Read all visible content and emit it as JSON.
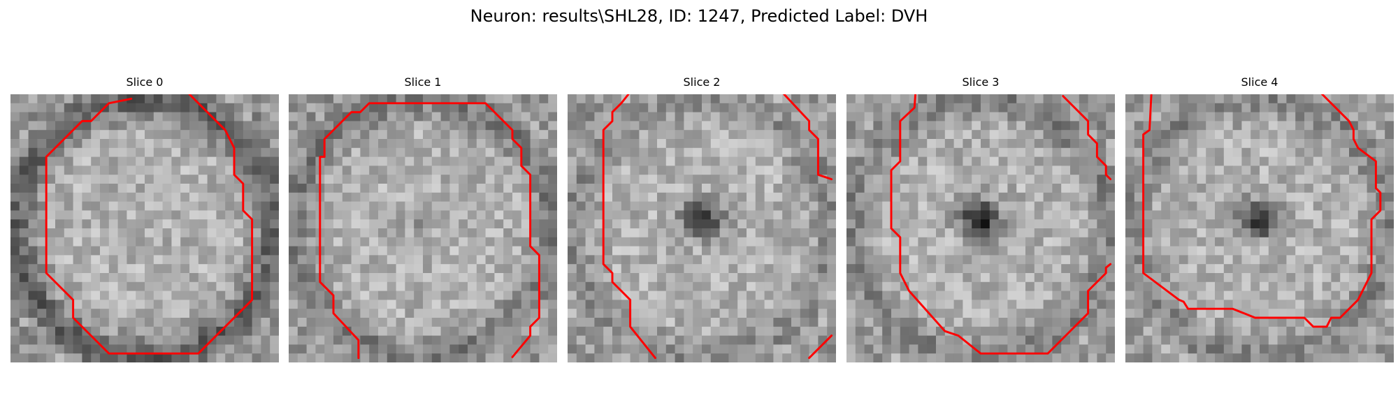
{
  "figure": {
    "title": "Neuron: results\\SHL28, ID: 1247, Predicted Label: DVH"
  },
  "colors": {
    "contour": "#ff0000",
    "background": "#ffffff"
  },
  "panels": [
    {
      "title": "Slice 0",
      "dark_center_strength": 0.04,
      "ring_strength": 0.95,
      "seed": 101
    },
    {
      "title": "Slice 1",
      "dark_center_strength": 0.18,
      "ring_strength": 0.65,
      "seed": 202
    },
    {
      "title": "Slice 2",
      "dark_center_strength": 0.95,
      "ring_strength": 0.45,
      "seed": 303
    },
    {
      "title": "Slice 3",
      "dark_center_strength": 1.0,
      "ring_strength": 0.58,
      "seed": 404
    },
    {
      "title": "Slice 4",
      "dark_center_strength": 0.9,
      "ring_strength": 0.52,
      "seed": 505
    }
  ]
}
